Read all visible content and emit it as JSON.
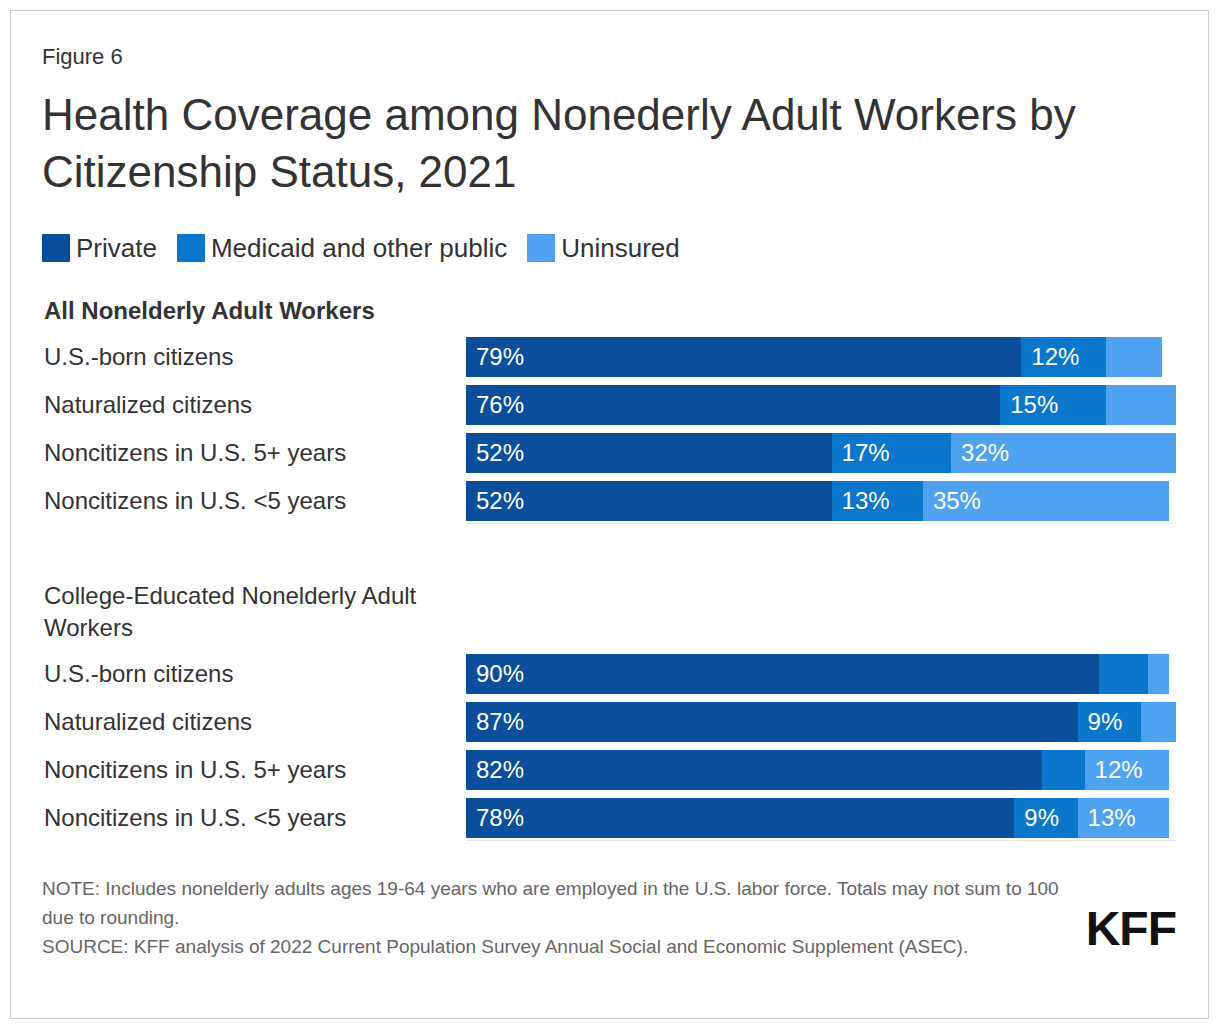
{
  "chart_data": {
    "type": "bar",
    "figure_label": "Figure 6",
    "title": "Health Coverage among Nonederly Adult Workers by Citizenship Status, 2021",
    "orientation": "horizontal",
    "stacked": true,
    "data_labels": true,
    "tick_labels": "y",
    "legend": "top",
    "xlim": [
      0,
      101
    ],
    "groups": [
      {
        "title": "All Nonelderly Adult Workers",
        "size": 4
      },
      {
        "title": "College-Educated Nonelderly Adult Workers",
        "size": 4
      }
    ],
    "categories": [
      "U.S.-born citizens",
      "Naturalized citizens",
      "Noncitizens in U.S. 5+ years",
      "Noncitizens in U.S. <5 years",
      "U.S.-born citizens",
      "Naturalized citizens",
      "Noncitizens in U.S. 5+ years",
      "Noncitizens in U.S. <5 years"
    ],
    "series": [
      {
        "name": "Private",
        "color": "#0b4f9c",
        "values": [
          79,
          76,
          52,
          52,
          90,
          87,
          82,
          78
        ],
        "value_labels": [
          "79%",
          "76%",
          "52%",
          "52%",
          "90%",
          "87%",
          "82%",
          "78%"
        ]
      },
      {
        "name": "Medicaid and other public",
        "color": "#0a76cc",
        "values": [
          12,
          15,
          17,
          13,
          7,
          9,
          6,
          9
        ],
        "value_labels": [
          "12%",
          "15%",
          "17%",
          "13%",
          null,
          "9%",
          null,
          "9%"
        ]
      },
      {
        "name": "Uninsured",
        "color": "#4ea2ef",
        "values": [
          8,
          10,
          32,
          35,
          3,
          5,
          12,
          13
        ],
        "value_labels": [
          null,
          null,
          "32%",
          "35%",
          null,
          null,
          "12%",
          "13%"
        ]
      }
    ],
    "note": "NOTE: Includes nonelderly adults ages 19-64 years who are employed in the U.S. labor force. Totals may not sum to 100 due to rounding.",
    "source": "SOURCE: KFF analysis of 2022 Current Population Survey Annual Social and Economic Supplement (ASEC).",
    "logo": "KFF"
  }
}
